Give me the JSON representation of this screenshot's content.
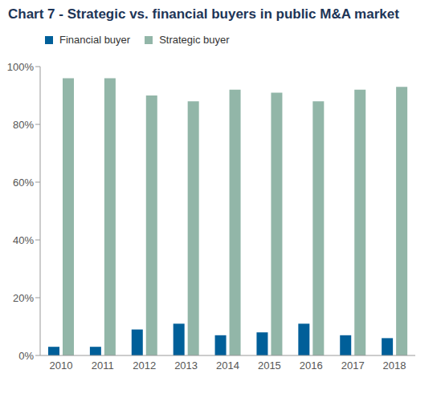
{
  "chart_data": {
    "type": "bar",
    "title": "Chart 7 - Strategic vs. financial buyers in public M&A market",
    "categories": [
      "2010",
      "2011",
      "2012",
      "2013",
      "2014",
      "2015",
      "2016",
      "2017",
      "2018"
    ],
    "series": [
      {
        "name": "Financial buyer",
        "color": "#005f99",
        "values": [
          3,
          3,
          9,
          11,
          7,
          8,
          11,
          7,
          6
        ]
      },
      {
        "name": "Strategic buyer",
        "color": "#92b6a8",
        "values": [
          96,
          96,
          90,
          88,
          92,
          91,
          88,
          92,
          93
        ]
      }
    ],
    "ylim": [
      0,
      100
    ],
    "yticks": [
      {
        "value": 0,
        "label": "0%"
      },
      {
        "value": 20,
        "label": "20%"
      },
      {
        "value": 40,
        "label": "40%"
      },
      {
        "value": 60,
        "label": "60%"
      },
      {
        "value": 80,
        "label": "80%"
      },
      {
        "value": 100,
        "label": "100%"
      }
    ],
    "grid": false,
    "legend": "top"
  }
}
